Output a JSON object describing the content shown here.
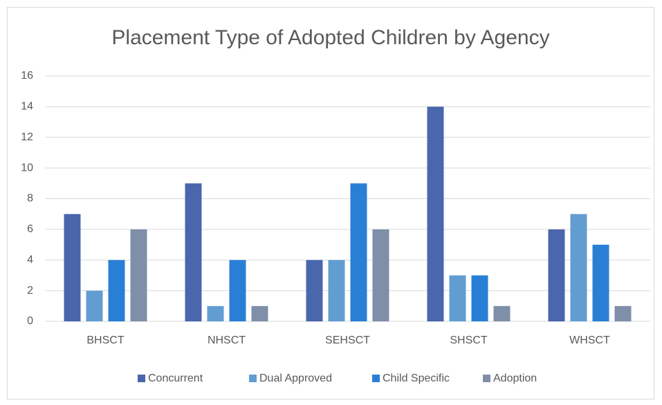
{
  "chart_data": {
    "type": "bar",
    "title": "Placement Type of Adopted Children by Agency",
    "categories": [
      "BHSCT",
      "NHSCT",
      "SEHSCT",
      "SHSCT",
      "WHSCT"
    ],
    "series": [
      {
        "name": "Concurrent",
        "color": "#4a66ac",
        "values": [
          7,
          9,
          4,
          14,
          6
        ]
      },
      {
        "name": "Dual Approved",
        "color": "#629dd1",
        "values": [
          2,
          1,
          4,
          3,
          7
        ]
      },
      {
        "name": "Child Specific",
        "color": "#297fd5",
        "values": [
          4,
          4,
          9,
          3,
          5
        ]
      },
      {
        "name": "Adoption",
        "color": "#7f8fa9",
        "values": [
          6,
          1,
          6,
          1,
          1
        ]
      }
    ],
    "ylim": [
      0,
      16
    ],
    "yticks": [
      0,
      2,
      4,
      6,
      8,
      10,
      12,
      14,
      16
    ],
    "grid": true,
    "legend": "bottom"
  }
}
